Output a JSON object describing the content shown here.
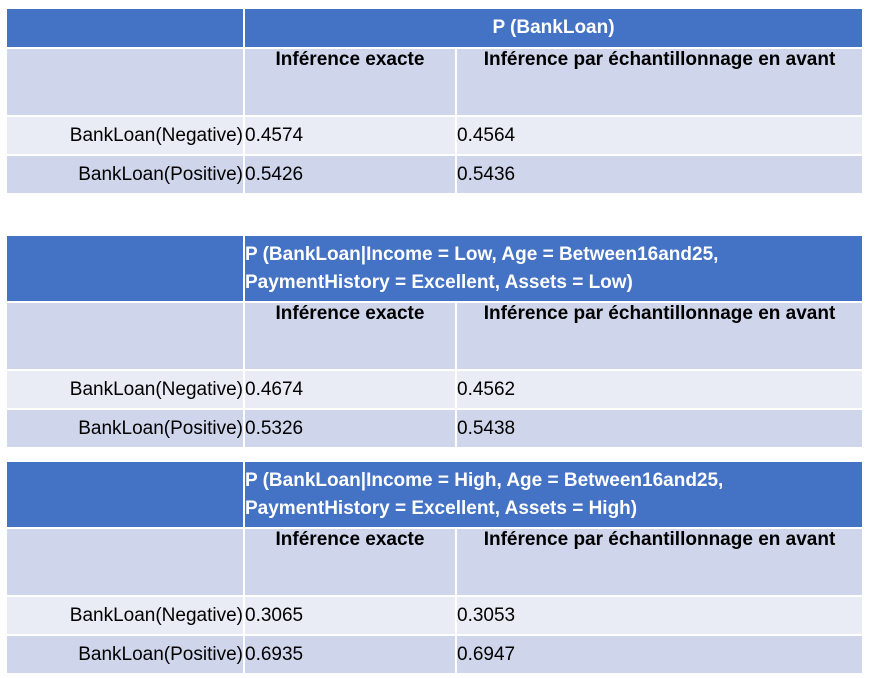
{
  "col_headers": {
    "exact": "Inférence exacte",
    "sampling": "Inférence par échantillonnage en avant"
  },
  "tables": [
    {
      "title_line1": "P (BankLoan)",
      "title_line2": "",
      "rows": [
        {
          "label": "BankLoan(Negative)",
          "exact": "0.4574",
          "sampling": "0.4564"
        },
        {
          "label": "BankLoan(Positive)",
          "exact": "0.5426",
          "sampling": "0.5436"
        }
      ]
    },
    {
      "title_line1": "P (BankLoan|Income = Low, Age = Between16and25,",
      "title_line2": "PaymentHistory = Excellent, Assets = Low)",
      "rows": [
        {
          "label": "BankLoan(Negative)",
          "exact": "0.4674",
          "sampling": "0.4562"
        },
        {
          "label": "BankLoan(Positive)",
          "exact": "0.5326",
          "sampling": "0.5438"
        }
      ]
    },
    {
      "title_line1": "P (BankLoan|Income = High, Age = Between16and25,",
      "title_line2": "PaymentHistory = Excellent, Assets = High)",
      "rows": [
        {
          "label": "BankLoan(Negative)",
          "exact": "0.3065",
          "sampling": "0.3053"
        },
        {
          "label": "BankLoan(Positive)",
          "exact": "0.6935",
          "sampling": "0.6947"
        }
      ]
    }
  ]
}
